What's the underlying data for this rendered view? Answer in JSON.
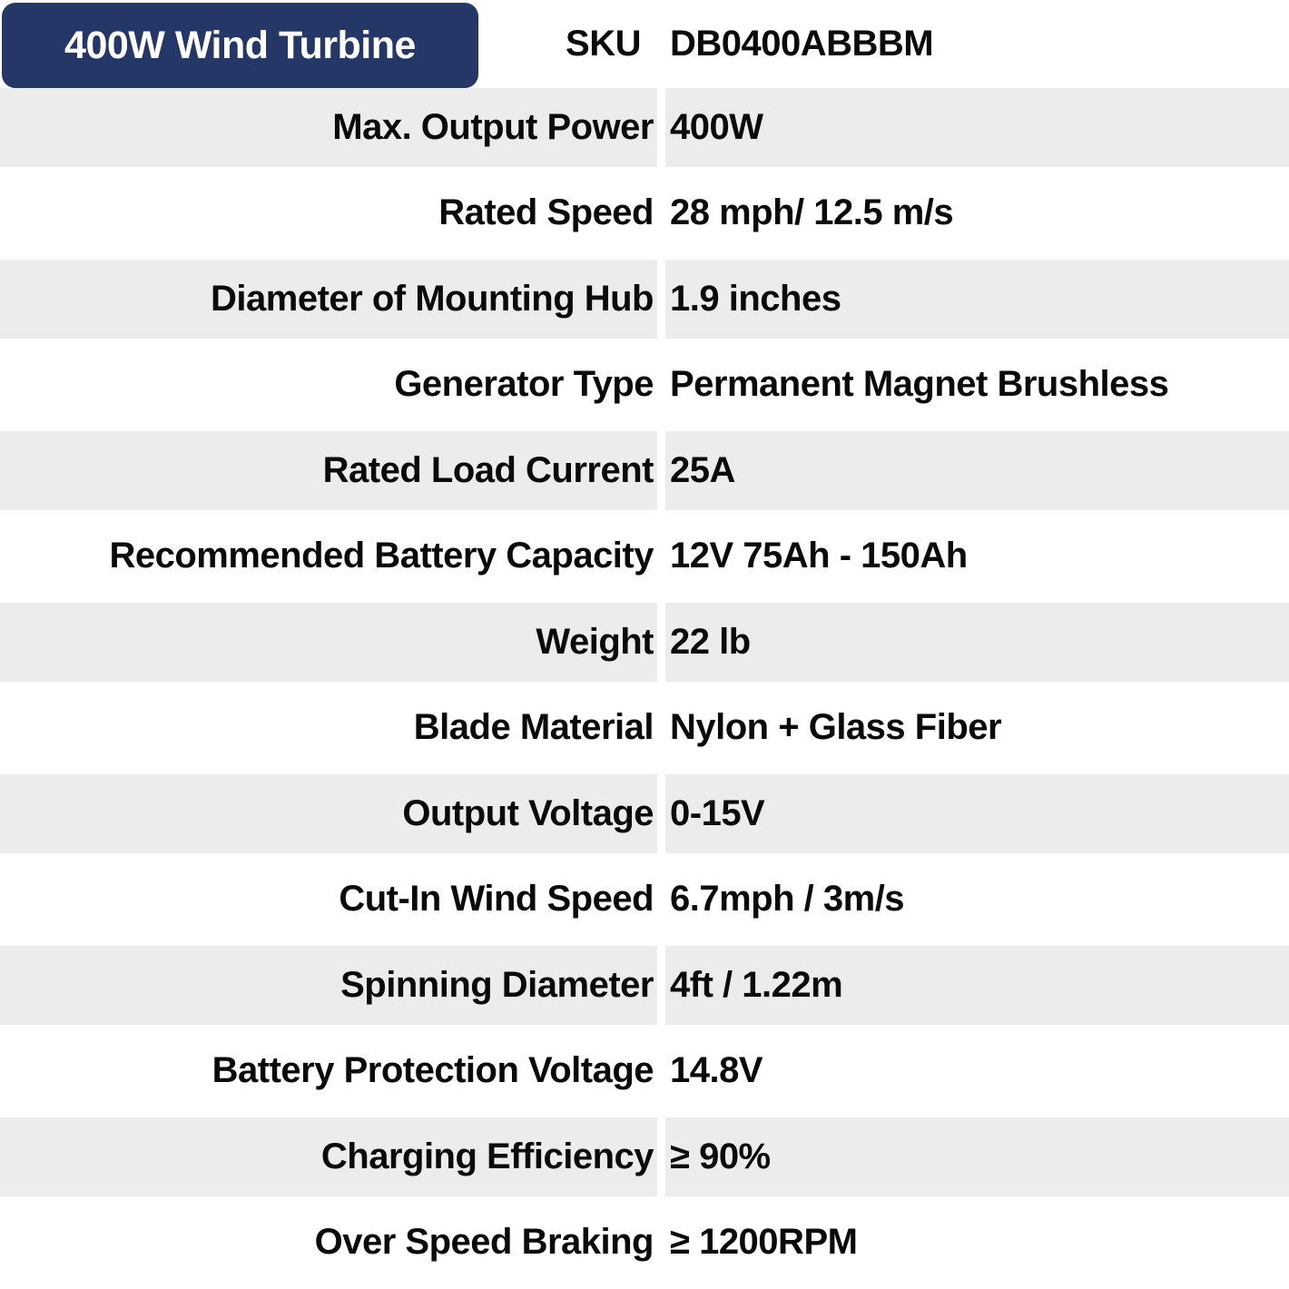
{
  "header": {
    "badge_label": "400W Wind Turbine",
    "sku_label": "SKU",
    "sku_value": "DB0400ABBBM"
  },
  "colors": {
    "badge_bg": "#253767",
    "row_alt_bg": "#ececec",
    "text": "#0a0a0a",
    "badge_text": "#ffffff"
  },
  "specs": [
    {
      "label": "Max. Output Power",
      "value": "400W"
    },
    {
      "label": "Rated Speed",
      "value": "28 mph/ 12.5 m/s"
    },
    {
      "label": "Diameter of Mounting Hub",
      "value": "1.9 inches"
    },
    {
      "label": "Generator Type",
      "value": "Permanent Magnet Brushless"
    },
    {
      "label": "Rated Load Current",
      "value": "25A"
    },
    {
      "label": "Recommended Battery Capacity",
      "value": "12V 75Ah - 150Ah"
    },
    {
      "label": "Weight",
      "value": "22 lb"
    },
    {
      "label": "Blade Material",
      "value": "Nylon + Glass Fiber"
    },
    {
      "label": "Output Voltage",
      "value": "0-15V"
    },
    {
      "label": "Cut-In Wind Speed",
      "value": "6.7mph / 3m/s"
    },
    {
      "label": "Spinning Diameter",
      "value": "4ft / 1.22m"
    },
    {
      "label": "Battery Protection Voltage",
      "value": "14.8V"
    },
    {
      "label": "Charging Efficiency",
      "value": "≥ 90%"
    },
    {
      "label": "Over Speed Braking",
      "value": "≥ 1200RPM"
    }
  ]
}
